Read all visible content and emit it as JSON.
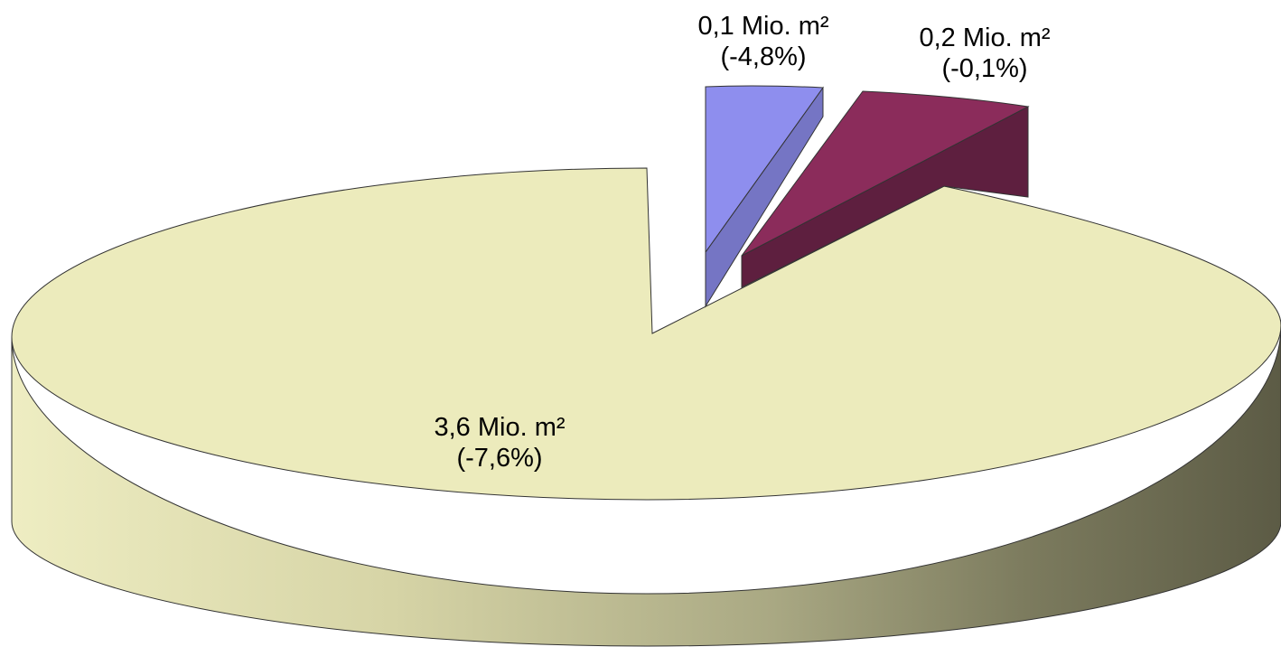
{
  "chart_data": {
    "type": "pie",
    "style": "3d-exploded",
    "values": [
      3.6,
      0.1,
      0.2
    ],
    "colors": [
      "#ECEBBC",
      "#8E8EEE",
      "#8B2C5B"
    ],
    "side_colors": [
      "#C9C89A",
      "#7575C4",
      "#5E1F3F"
    ],
    "data_labels": [
      {
        "value": "3,6 Mio. m²",
        "change": "(-7,6%)"
      },
      {
        "value": "0,1 Mio. m²",
        "change": "(-4,8%)"
      },
      {
        "value": "0,2 Mio. m²",
        "change": "(-0,1%)"
      }
    ],
    "title": "",
    "legend": "none"
  }
}
